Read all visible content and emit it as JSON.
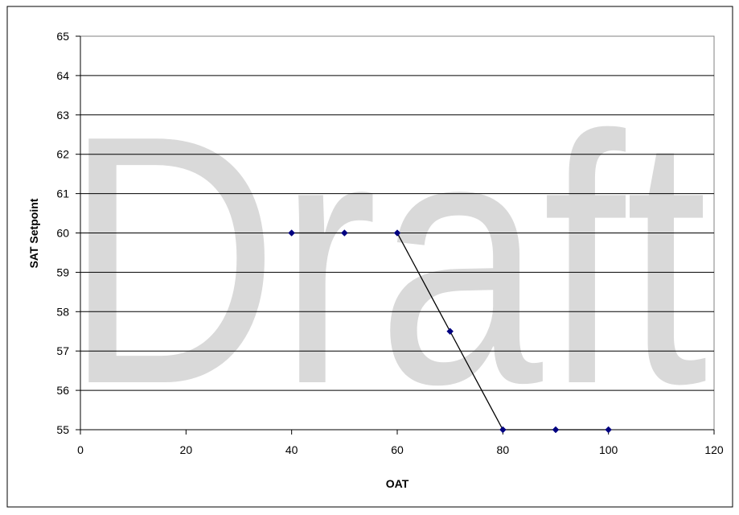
{
  "watermark": "Draft",
  "chart_data": {
    "type": "scatter",
    "title": "",
    "xlabel": "OAT",
    "ylabel": "SAT Setpoint",
    "xlim": [
      0,
      120
    ],
    "ylim": [
      55,
      65
    ],
    "xticks": [
      0,
      20,
      40,
      60,
      80,
      100,
      120
    ],
    "yticks": [
      55,
      56,
      57,
      58,
      59,
      60,
      61,
      62,
      63,
      64,
      65
    ],
    "grid": "horizontal",
    "legend": "none",
    "series": [
      {
        "x": [
          40,
          50,
          60,
          70,
          80,
          90,
          100
        ],
        "y": [
          60,
          60,
          60,
          57.5,
          55,
          55,
          55
        ],
        "marker": "diamond",
        "marker_color": "#000080",
        "line": "straight"
      }
    ]
  }
}
